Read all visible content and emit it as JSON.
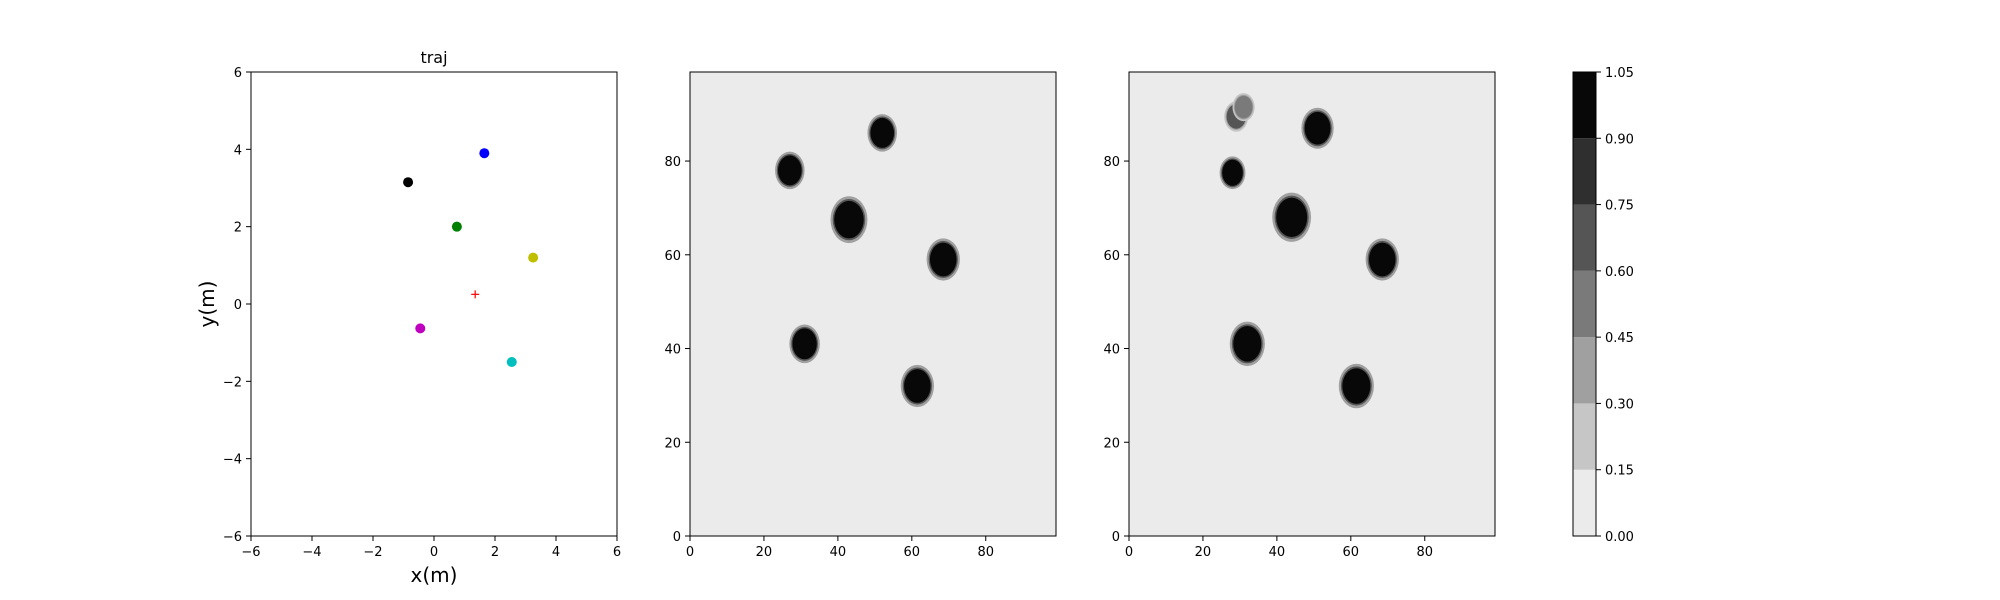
{
  "figure": {
    "background": "#ffffff"
  },
  "chart_data": [
    {
      "type": "scatter",
      "title": "traj",
      "xlabel": "x(m)",
      "ylabel": "y(m)",
      "xlim": [
        -6,
        6
      ],
      "ylim": [
        -6,
        6
      ],
      "xticks": [
        -6,
        -4,
        -2,
        0,
        2,
        4,
        6
      ],
      "yticks": [
        -6,
        -4,
        -2,
        0,
        2,
        4,
        6
      ],
      "grid": false,
      "points": [
        {
          "x": -0.85,
          "y": 3.15,
          "color": "#000000",
          "marker": "dot"
        },
        {
          "x": 1.65,
          "y": 3.9,
          "color": "#0000ff",
          "marker": "dot"
        },
        {
          "x": 0.75,
          "y": 2.0,
          "color": "#008000",
          "marker": "dot"
        },
        {
          "x": 3.25,
          "y": 1.2,
          "color": "#bfbf00",
          "marker": "dot"
        },
        {
          "x": -0.45,
          "y": -0.63,
          "color": "#bf00bf",
          "marker": "dot"
        },
        {
          "x": 2.55,
          "y": -1.5,
          "color": "#00bfbf",
          "marker": "dot"
        },
        {
          "x": 1.35,
          "y": 0.25,
          "color": "#ff0000",
          "marker": "plus"
        }
      ]
    },
    {
      "type": "heatmap",
      "title": "",
      "xlim": [
        0,
        99
      ],
      "ylim": [
        0,
        99
      ],
      "xticks": [
        0,
        20,
        40,
        60,
        80
      ],
      "yticks": [
        0,
        20,
        40,
        60,
        80
      ],
      "background_value": 0.05,
      "blobs": [
        {
          "cx": 52,
          "cy": 86,
          "r": 3.2,
          "value": 1.0
        },
        {
          "cx": 27,
          "cy": 78,
          "r": 3.2,
          "value": 1.0
        },
        {
          "cx": 43,
          "cy": 67.5,
          "r": 4.0,
          "value": 1.0
        },
        {
          "cx": 68.5,
          "cy": 59,
          "r": 3.6,
          "value": 1.0
        },
        {
          "cx": 31,
          "cy": 41,
          "r": 3.3,
          "value": 1.0
        },
        {
          "cx": 61.5,
          "cy": 32,
          "r": 3.6,
          "value": 1.0
        }
      ]
    },
    {
      "type": "heatmap",
      "title": "",
      "xlim": [
        0,
        99
      ],
      "ylim": [
        0,
        99
      ],
      "xticks": [
        0,
        20,
        40,
        60,
        80
      ],
      "yticks": [
        0,
        20,
        40,
        60,
        80
      ],
      "background_value": 0.05,
      "blobs": [
        {
          "cx": 29,
          "cy": 89.5,
          "r": 2.6,
          "value": 0.6
        },
        {
          "cx": 31,
          "cy": 91.5,
          "r": 2.4,
          "value": 0.5
        },
        {
          "cx": 51,
          "cy": 87,
          "r": 3.5,
          "value": 1.0
        },
        {
          "cx": 28,
          "cy": 77.5,
          "r": 2.8,
          "value": 0.95
        },
        {
          "cx": 44,
          "cy": 68,
          "r": 4.2,
          "value": 1.0
        },
        {
          "cx": 68.5,
          "cy": 59,
          "r": 3.6,
          "value": 1.0
        },
        {
          "cx": 32,
          "cy": 41,
          "r": 3.8,
          "value": 1.0
        },
        {
          "cx": 61.5,
          "cy": 32,
          "r": 3.8,
          "value": 1.0
        }
      ]
    },
    {
      "type": "colorbar",
      "ticks": [
        "0.00",
        "0.15",
        "0.30",
        "0.45",
        "0.60",
        "0.75",
        "0.90",
        "1.05"
      ],
      "levels": [
        0.0,
        0.15,
        0.3,
        0.45,
        0.6,
        0.75,
        0.9,
        1.05
      ],
      "colors": [
        "#ebebeb",
        "#c6c6c6",
        "#a0a0a0",
        "#7a7a7a",
        "#555555",
        "#2f2f2f",
        "#080808"
      ]
    }
  ]
}
